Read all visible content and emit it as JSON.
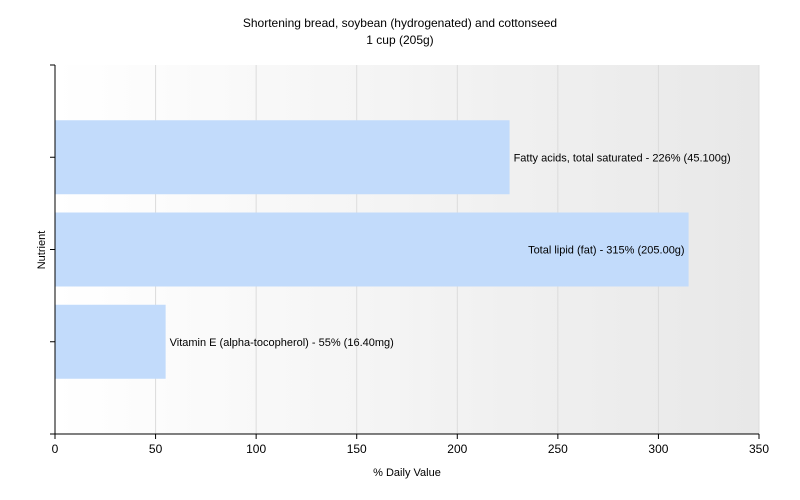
{
  "chart_data": {
    "type": "bar",
    "orientation": "horizontal",
    "title": "Shortening bread, soybean (hydrogenated) and cottonseed",
    "subtitle": "1 cup (205g)",
    "xlabel": "% Daily Value",
    "ylabel": "Nutrient",
    "xlim": [
      0,
      350
    ],
    "xticks": [
      0,
      50,
      100,
      150,
      200,
      250,
      300,
      350
    ],
    "grid": true,
    "bar_color": "#c2dbfb",
    "background_gradient": [
      "#ffffff",
      "#e8e8e8"
    ],
    "categories": [
      "Fatty acids, total saturated",
      "Total lipid (fat)",
      "Vitamin E (alpha-tocopherol)"
    ],
    "values": [
      226,
      315,
      55
    ],
    "labels": [
      "Fatty acids, total saturated - 226% (45.100g)",
      "Total lipid (fat) - 315% (205.00g)",
      "Vitamin E (alpha-tocopherol) - 55% (16.40mg)"
    ]
  }
}
